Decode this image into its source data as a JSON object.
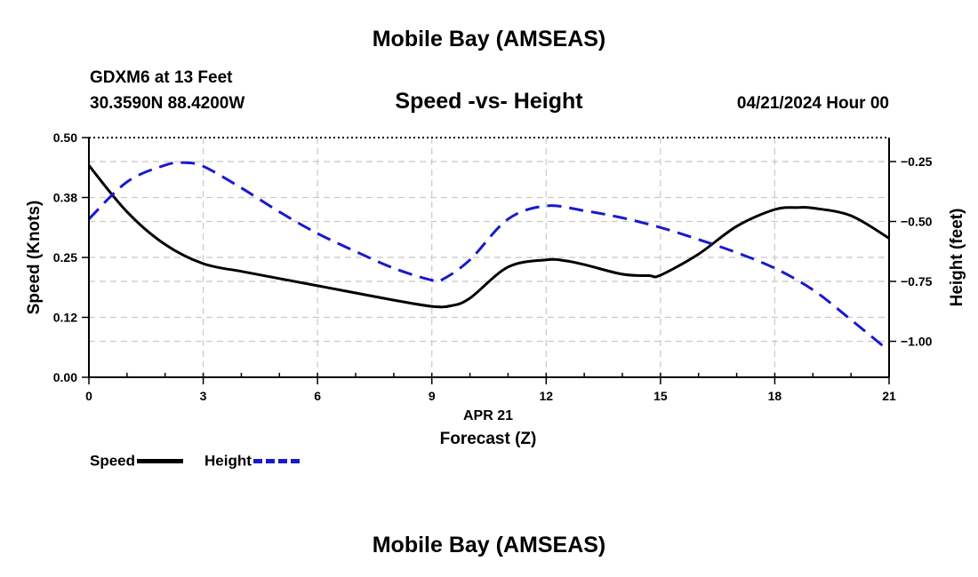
{
  "header": {
    "title": "Mobile Bay (AMSEAS)",
    "station": "GDXM6 at 13 Feet",
    "coords": "30.3590N  88.4200W",
    "subtitle": "Speed -vs- Height",
    "datetime": "04/21/2024 Hour 00"
  },
  "footer": {
    "title": "Mobile Bay (AMSEAS)"
  },
  "legend": {
    "speed_label": "Speed",
    "height_label": "Height",
    "speed_color": "#000000",
    "height_color": "#1a1acc"
  },
  "chart_data": {
    "type": "line",
    "x_label_line1": "APR 21",
    "x_label_line2": "Forecast (Z)",
    "xlim": [
      0,
      21
    ],
    "x_ticks": [
      0,
      3,
      6,
      9,
      12,
      15,
      18,
      21
    ],
    "x_tick_labels": [
      "0",
      "3",
      "6",
      "9",
      "12",
      "15",
      "18",
      "21"
    ],
    "y_left": {
      "label": "Speed (Knots)",
      "lim": [
        0,
        0.5
      ],
      "ticks": [
        0,
        0.125,
        0.25,
        0.375,
        0.5
      ],
      "tick_labels": [
        "0.00",
        "0.12",
        "0.25",
        "0.38",
        "0.50"
      ]
    },
    "y_right": {
      "label": "Height (feet)",
      "lim": [
        -1.15,
        -0.15
      ],
      "ticks": [
        -0.25,
        -0.5,
        -0.75,
        -1.0
      ],
      "tick_labels": [
        "−0.25",
        "−0.50",
        "−0.75",
        "−1.00"
      ]
    },
    "grid": true,
    "series": [
      {
        "name": "Speed",
        "axis": "left",
        "color": "#000000",
        "dash": "solid",
        "x": [
          0,
          1,
          2,
          3,
          4,
          5,
          6,
          7,
          8,
          9,
          9.5,
          10,
          11,
          12,
          12.5,
          13,
          14,
          14.7,
          15,
          16,
          17,
          18,
          18.6,
          19,
          20,
          21
        ],
        "y": [
          0.442,
          0.345,
          0.277,
          0.237,
          0.221,
          0.206,
          0.191,
          0.176,
          0.161,
          0.148,
          0.149,
          0.165,
          0.23,
          0.245,
          0.243,
          0.235,
          0.215,
          0.212,
          0.213,
          0.257,
          0.315,
          0.35,
          0.354,
          0.353,
          0.337,
          0.29
        ]
      },
      {
        "name": "Height",
        "axis": "right",
        "color": "#1a1acc",
        "dash": "dashed",
        "x": [
          0,
          1,
          2,
          2.5,
          3,
          4,
          5,
          6,
          7,
          8,
          9,
          9.3,
          10,
          11,
          12,
          13,
          14,
          15,
          16,
          17,
          18,
          19,
          20,
          21
        ],
        "y": [
          -0.49,
          -0.335,
          -0.265,
          -0.255,
          -0.27,
          -0.36,
          -0.46,
          -0.55,
          -0.625,
          -0.695,
          -0.745,
          -0.74,
          -0.66,
          -0.49,
          -0.435,
          -0.455,
          -0.485,
          -0.525,
          -0.575,
          -0.63,
          -0.695,
          -0.785,
          -0.91,
          -1.04
        ]
      }
    ]
  }
}
